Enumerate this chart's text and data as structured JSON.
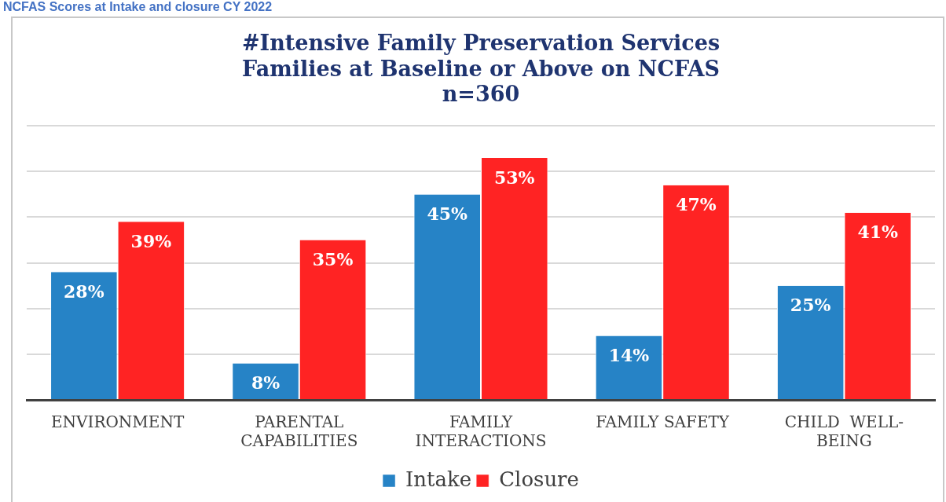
{
  "chart_data": {
    "type": "bar",
    "title": "#Intensive Family Preservation Services\nFamilies at Baseline or Above on NCFAS\nn=360",
    "annotations": [
      "NCFAS Scores at Intake and closure CY 2022"
    ],
    "categories": [
      "ENVIRONMENT",
      "PARENTAL\nCAPABILITIES",
      "FAMILY\nINTERACTIONS",
      "FAMILY SAFETY",
      "CHILD  WELL-\nBEING"
    ],
    "series": [
      {
        "name": "Intake",
        "color": "#2683c6",
        "values": [
          28,
          8,
          45,
          14,
          25
        ],
        "value_labels": [
          "28%",
          "8%",
          "45%",
          "14%",
          "25%"
        ]
      },
      {
        "name": "Closure",
        "color": "#ff2323",
        "values": [
          39,
          35,
          53,
          47,
          41
        ],
        "value_labels": [
          "39%",
          "35%",
          "53%",
          "47%",
          "41%"
        ]
      }
    ],
    "tick_labels": "x",
    "grid": "y",
    "legend": "bottom"
  }
}
